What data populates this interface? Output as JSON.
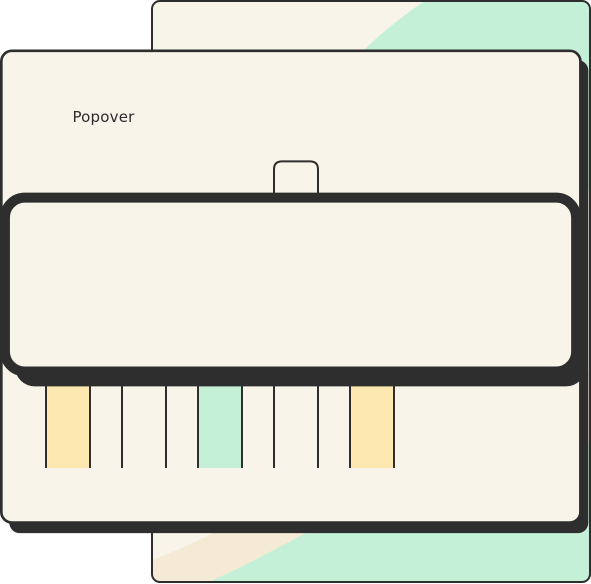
{
  "popover": {
    "label": "Popover"
  },
  "colors": {
    "cream": "#f9f4e9",
    "mint": "#c4f0d7",
    "sand": "#f5ead6",
    "yellow": "#fce7b0",
    "outline": "#2e2e2e",
    "shadow": "#2e2e2e"
  },
  "chart_data": {
    "type": "bar",
    "categories": [
      "",
      "",
      "",
      "",
      ""
    ],
    "values": [
      5.85,
      4.55,
      3.05,
      6.75,
      5.5
    ],
    "ylim": [
      0,
      7
    ],
    "bar_fills": [
      "yellow",
      "cream",
      "mint",
      "cream",
      "yellow"
    ]
  }
}
